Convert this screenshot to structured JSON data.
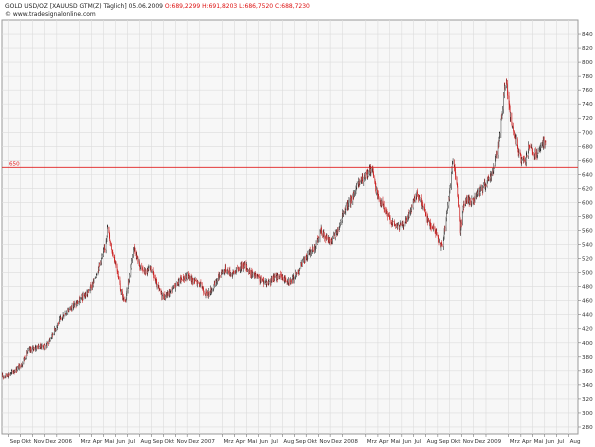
{
  "header": {
    "symbol": "GOLD USD/OZ [XAUUSD GTM(Z)  Täglich] 05.06.2009",
    "ohlc": "O:689,2299 H:691,8203 L:686,7520 C:688,7230",
    "copyright": "© www.tradesignalonline.com"
  },
  "colors": {
    "background": "#ffffff",
    "plot_bg": "#f7f7f7",
    "grid": "#dcdcdc",
    "candle_outline": "#000000",
    "candle_body": "#8a8a8a",
    "red_accent": "#cc1f1f",
    "level_line": "#e01e1e"
  },
  "chart_data": {
    "type": "candlestick",
    "title": "GOLD USD/OZ [XAUUSD GTM(Z) Täglich] 05.06.2009",
    "xlabel": "",
    "ylabel": "",
    "ylim": [
      270,
      860
    ],
    "y_ticks": [
      280,
      300,
      320,
      340,
      360,
      380,
      400,
      420,
      440,
      460,
      480,
      500,
      520,
      540,
      560,
      580,
      600,
      620,
      640,
      660,
      680,
      700,
      720,
      740,
      760,
      780,
      800,
      820,
      840
    ],
    "x_range": [
      "2005-08-15",
      "2009-08-25"
    ],
    "x_ticks": [
      {
        "date": "2005-09-01",
        "label": "Sep"
      },
      {
        "date": "2005-10-01",
        "label": "Okt"
      },
      {
        "date": "2005-11-01",
        "label": "Nov"
      },
      {
        "date": "2005-12-01",
        "label": "Dez"
      },
      {
        "date": "2006-01-02",
        "label": "2006"
      },
      {
        "date": "2006-03-01",
        "label": "Mrz"
      },
      {
        "date": "2006-04-01",
        "label": "Apr"
      },
      {
        "date": "2006-05-01",
        "label": "Mai"
      },
      {
        "date": "2006-06-01",
        "label": "Jun"
      },
      {
        "date": "2006-07-01",
        "label": "Jul"
      },
      {
        "date": "2006-08-01",
        "label": "Aug"
      },
      {
        "date": "2006-09-01",
        "label": "Sep"
      },
      {
        "date": "2006-10-01",
        "label": "Okt"
      },
      {
        "date": "2006-11-01",
        "label": "Nov"
      },
      {
        "date": "2006-12-01",
        "label": "Dez"
      },
      {
        "date": "2007-01-02",
        "label": "2007"
      },
      {
        "date": "2007-03-01",
        "label": "Mrz"
      },
      {
        "date": "2007-04-01",
        "label": "Apr"
      },
      {
        "date": "2007-05-01",
        "label": "Mai"
      },
      {
        "date": "2007-06-01",
        "label": "Jun"
      },
      {
        "date": "2007-07-01",
        "label": "Jul"
      },
      {
        "date": "2007-08-01",
        "label": "Aug"
      },
      {
        "date": "2007-09-01",
        "label": "Sep"
      },
      {
        "date": "2007-10-01",
        "label": "Okt"
      },
      {
        "date": "2007-11-01",
        "label": "Nov"
      },
      {
        "date": "2007-12-01",
        "label": "Dez"
      },
      {
        "date": "2008-01-02",
        "label": "2008"
      },
      {
        "date": "2008-03-01",
        "label": "Mrz"
      },
      {
        "date": "2008-04-01",
        "label": "Apr"
      },
      {
        "date": "2008-05-01",
        "label": "Mai"
      },
      {
        "date": "2008-06-01",
        "label": "Jun"
      },
      {
        "date": "2008-07-01",
        "label": "Jul"
      },
      {
        "date": "2008-08-01",
        "label": "Aug"
      },
      {
        "date": "2008-09-01",
        "label": "Sep"
      },
      {
        "date": "2008-10-01",
        "label": "Okt"
      },
      {
        "date": "2008-11-01",
        "label": "Nov"
      },
      {
        "date": "2008-12-01",
        "label": "Dez"
      },
      {
        "date": "2009-01-02",
        "label": "2009"
      },
      {
        "date": "2009-03-01",
        "label": "Mrz"
      },
      {
        "date": "2009-04-01",
        "label": "Apr"
      },
      {
        "date": "2009-05-01",
        "label": "Mai"
      },
      {
        "date": "2009-06-01",
        "label": "Jun"
      },
      {
        "date": "2009-07-01",
        "label": "Jul"
      },
      {
        "date": "2009-08-01",
        "label": "Aug"
      }
    ],
    "horizontal_line": {
      "value": 650,
      "label": "650"
    },
    "grid": true,
    "price_path": [
      {
        "date": "2005-08-16",
        "price": 352
      },
      {
        "date": "2005-09-05",
        "price": 356
      },
      {
        "date": "2005-09-20",
        "price": 362
      },
      {
        "date": "2005-10-05",
        "price": 370
      },
      {
        "date": "2005-10-20",
        "price": 388
      },
      {
        "date": "2005-11-05",
        "price": 393
      },
      {
        "date": "2005-11-20",
        "price": 395
      },
      {
        "date": "2005-12-05",
        "price": 395
      },
      {
        "date": "2005-12-20",
        "price": 410
      },
      {
        "date": "2006-01-05",
        "price": 428
      },
      {
        "date": "2006-01-20",
        "price": 440
      },
      {
        "date": "2006-02-05",
        "price": 450
      },
      {
        "date": "2006-02-20",
        "price": 455
      },
      {
        "date": "2006-03-05",
        "price": 462
      },
      {
        "date": "2006-03-20",
        "price": 470
      },
      {
        "date": "2006-04-05",
        "price": 485
      },
      {
        "date": "2006-04-20",
        "price": 510
      },
      {
        "date": "2006-05-05",
        "price": 535
      },
      {
        "date": "2006-05-12",
        "price": 565
      },
      {
        "date": "2006-05-20",
        "price": 538
      },
      {
        "date": "2006-06-01",
        "price": 515
      },
      {
        "date": "2006-06-14",
        "price": 475
      },
      {
        "date": "2006-06-25",
        "price": 455
      },
      {
        "date": "2006-07-05",
        "price": 488
      },
      {
        "date": "2006-07-17",
        "price": 538
      },
      {
        "date": "2006-08-01",
        "price": 510
      },
      {
        "date": "2006-08-15",
        "price": 500
      },
      {
        "date": "2006-09-01",
        "price": 505
      },
      {
        "date": "2006-09-15",
        "price": 480
      },
      {
        "date": "2006-10-01",
        "price": 465
      },
      {
        "date": "2006-10-15",
        "price": 470
      },
      {
        "date": "2006-11-01",
        "price": 482
      },
      {
        "date": "2006-11-15",
        "price": 490
      },
      {
        "date": "2006-12-01",
        "price": 495
      },
      {
        "date": "2006-12-15",
        "price": 490
      },
      {
        "date": "2007-01-05",
        "price": 482
      },
      {
        "date": "2007-01-20",
        "price": 468
      },
      {
        "date": "2007-02-05",
        "price": 478
      },
      {
        "date": "2007-02-25",
        "price": 500
      },
      {
        "date": "2007-03-10",
        "price": 505
      },
      {
        "date": "2007-03-25",
        "price": 498
      },
      {
        "date": "2007-04-10",
        "price": 505
      },
      {
        "date": "2007-04-25",
        "price": 512
      },
      {
        "date": "2007-05-10",
        "price": 500
      },
      {
        "date": "2007-05-25",
        "price": 495
      },
      {
        "date": "2007-06-10",
        "price": 488
      },
      {
        "date": "2007-06-25",
        "price": 486
      },
      {
        "date": "2007-07-10",
        "price": 492
      },
      {
        "date": "2007-07-25",
        "price": 495
      },
      {
        "date": "2007-08-10",
        "price": 490
      },
      {
        "date": "2007-08-25",
        "price": 488
      },
      {
        "date": "2007-09-10",
        "price": 502
      },
      {
        "date": "2007-09-25",
        "price": 518
      },
      {
        "date": "2007-10-10",
        "price": 528
      },
      {
        "date": "2007-10-25",
        "price": 538
      },
      {
        "date": "2007-11-08",
        "price": 560
      },
      {
        "date": "2007-11-20",
        "price": 548
      },
      {
        "date": "2007-12-05",
        "price": 545
      },
      {
        "date": "2007-12-20",
        "price": 560
      },
      {
        "date": "2008-01-05",
        "price": 585
      },
      {
        "date": "2008-01-20",
        "price": 600
      },
      {
        "date": "2008-02-05",
        "price": 620
      },
      {
        "date": "2008-02-20",
        "price": 632
      },
      {
        "date": "2008-03-05",
        "price": 640
      },
      {
        "date": "2008-03-17",
        "price": 652
      },
      {
        "date": "2008-03-28",
        "price": 615
      },
      {
        "date": "2008-04-10",
        "price": 600
      },
      {
        "date": "2008-04-25",
        "price": 582
      },
      {
        "date": "2008-05-10",
        "price": 570
      },
      {
        "date": "2008-05-25",
        "price": 565
      },
      {
        "date": "2008-06-10",
        "price": 572
      },
      {
        "date": "2008-06-25",
        "price": 590
      },
      {
        "date": "2008-07-10",
        "price": 612
      },
      {
        "date": "2008-07-25",
        "price": 595
      },
      {
        "date": "2008-08-10",
        "price": 570
      },
      {
        "date": "2008-08-25",
        "price": 560
      },
      {
        "date": "2008-09-05",
        "price": 545
      },
      {
        "date": "2008-09-12",
        "price": 535
      },
      {
        "date": "2008-09-20",
        "price": 570
      },
      {
        "date": "2008-10-01",
        "price": 612
      },
      {
        "date": "2008-10-10",
        "price": 665
      },
      {
        "date": "2008-10-20",
        "price": 630
      },
      {
        "date": "2008-10-28",
        "price": 560
      },
      {
        "date": "2008-11-05",
        "price": 595
      },
      {
        "date": "2008-11-15",
        "price": 605
      },
      {
        "date": "2008-11-25",
        "price": 600
      },
      {
        "date": "2008-12-05",
        "price": 605
      },
      {
        "date": "2008-12-20",
        "price": 618
      },
      {
        "date": "2009-01-05",
        "price": 630
      },
      {
        "date": "2009-01-20",
        "price": 645
      },
      {
        "date": "2009-02-02",
        "price": 680
      },
      {
        "date": "2009-02-10",
        "price": 720
      },
      {
        "date": "2009-02-18",
        "price": 760
      },
      {
        "date": "2009-02-22",
        "price": 785
      },
      {
        "date": "2009-02-28",
        "price": 745
      },
      {
        "date": "2009-03-08",
        "price": 715
      },
      {
        "date": "2009-03-18",
        "price": 690
      },
      {
        "date": "2009-03-28",
        "price": 668
      },
      {
        "date": "2009-04-05",
        "price": 660
      },
      {
        "date": "2009-04-12",
        "price": 655
      },
      {
        "date": "2009-04-22",
        "price": 680
      },
      {
        "date": "2009-05-01",
        "price": 670
      },
      {
        "date": "2009-05-10",
        "price": 665
      },
      {
        "date": "2009-05-18",
        "price": 672
      },
      {
        "date": "2009-05-26",
        "price": 682
      },
      {
        "date": "2009-06-02",
        "price": 688
      },
      {
        "date": "2009-06-05",
        "price": 689
      }
    ]
  }
}
